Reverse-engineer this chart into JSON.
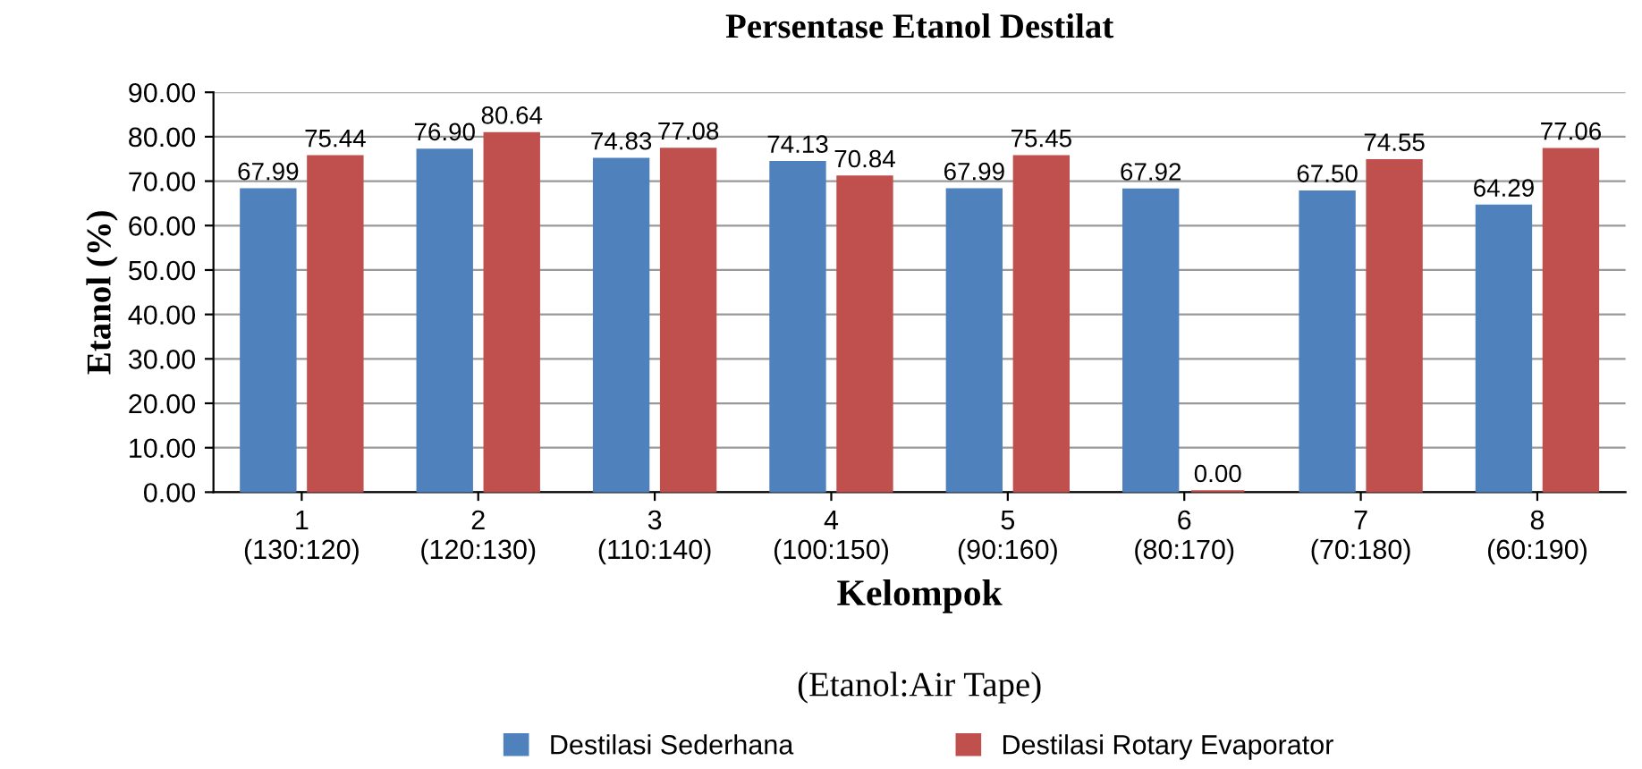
{
  "chart_data": {
    "type": "bar",
    "title": "Persentase Etanol Destilat",
    "xlabel": "Kelompok",
    "ylabel": "Etanol (%)",
    "annotations": [
      "(Etanol:Air Tape)"
    ],
    "categories": [
      "1\n(130:120)",
      "2\n(120:130)",
      "3\n(110:140)",
      "4\n(100:150)",
      "5\n(90:160)",
      "6\n(80:170)",
      "7\n(70:180)",
      "8\n(60:190)"
    ],
    "series": [
      {
        "name": "Destilasi Sederhana",
        "color": "#4f81bd",
        "values": [
          67.99,
          76.9,
          74.83,
          74.13,
          67.99,
          67.92,
          67.5,
          64.29
        ],
        "value_labels": [
          "67.99",
          "76.90",
          "74.83",
          "74.13",
          "67.99",
          "67.92",
          "67.50",
          "64.29"
        ]
      },
      {
        "name": "Destilasi Rotary Evaporator",
        "color": "#c0504d",
        "values": [
          75.44,
          80.64,
          77.08,
          70.84,
          75.45,
          0.0,
          74.55,
          77.06
        ],
        "value_labels": [
          "75.44",
          "80.64",
          "77.08",
          "70.84",
          "75.45",
          "0.00",
          "74.55",
          "77.06"
        ]
      }
    ],
    "ylim": [
      0,
      90
    ],
    "yticks": [
      {
        "value": 0,
        "label": "0.00"
      },
      {
        "value": 10,
        "label": "10.00"
      },
      {
        "value": 20,
        "label": "20.00"
      },
      {
        "value": 30,
        "label": "30.00"
      },
      {
        "value": 40,
        "label": "40.00"
      },
      {
        "value": 50,
        "label": "50.00"
      },
      {
        "value": 60,
        "label": "60.00"
      },
      {
        "value": 70,
        "label": "70.00"
      },
      {
        "value": 80,
        "label": "80.00"
      },
      {
        "value": 90,
        "label": "90.00"
      }
    ],
    "grid": "y",
    "legend": "bottom"
  }
}
